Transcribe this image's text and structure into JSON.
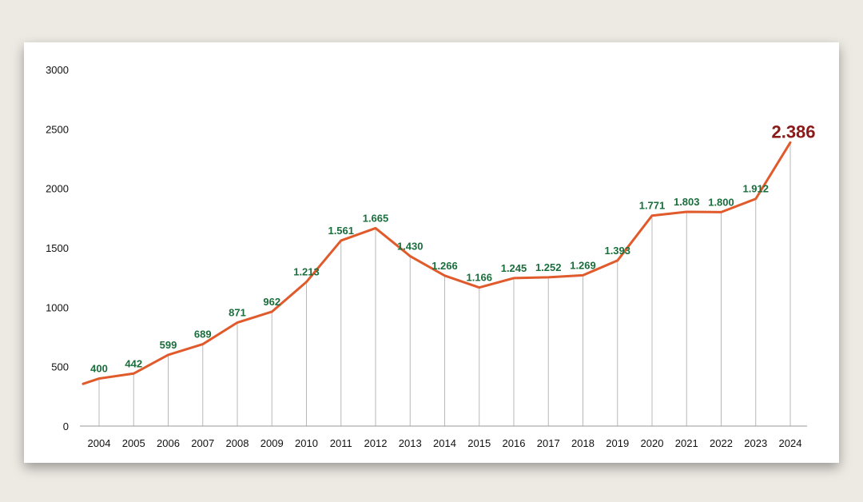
{
  "chart_data": {
    "type": "line",
    "x": [
      "2004",
      "2005",
      "2006",
      "2007",
      "2008",
      "2009",
      "2010",
      "2011",
      "2012",
      "2013",
      "2014",
      "2015",
      "2016",
      "2017",
      "2018",
      "2019",
      "2020",
      "2021",
      "2022",
      "2023",
      "2024"
    ],
    "values": [
      400,
      442,
      599,
      689,
      871,
      962,
      1213,
      1561,
      1665,
      1430,
      1266,
      1166,
      1245,
      1252,
      1269,
      1393,
      1771,
      1803,
      1800,
      1912,
      2386
    ],
    "data_labels": [
      "400",
      "442",
      "599",
      "689",
      "871",
      "962",
      "1.213",
      "1.561",
      "1.665",
      "1.430",
      "1.266",
      "1.166",
      "1.245",
      "1.252",
      "1.269",
      "1.393",
      "1.771",
      "1.803",
      "1.800",
      "1.912",
      "2.386"
    ],
    "yticks": [
      "0",
      "500",
      "1000",
      "1500",
      "2000",
      "2500",
      "3000"
    ],
    "ylim": [
      0,
      3000
    ],
    "title": "",
    "xlabel": "",
    "ylabel": "",
    "grid": "vertical drop lines at each year",
    "line_color": "#e05a2b",
    "label_color": "#1a6e3c",
    "highlight_color": "#8b1a1a",
    "dropline_color": "#b8b8b8"
  }
}
